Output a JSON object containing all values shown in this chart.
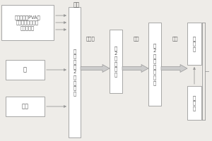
{
  "bg_color": "#eeece8",
  "box_color": "#ffffff",
  "box_edge": "#999999",
  "arrow_color": "#999999",
  "text_color": "#555555",
  "box1_text": "在１中加入PVA纤\n维、橡胶粉、松煤\n灰、乳胶粉",
  "box2_text": "砂",
  "box3_text": "水泥",
  "box4_text": "共\n同\n加\n入\n2\n中\n，\n搅\n拌",
  "label_top": "搅拌",
  "label_dry": "干搅拌",
  "box5_text": "在\n2\n中\n加\n入\n水",
  "label_mix2": "搅拌",
  "box6_text": "在\n2\n中\n加\n入\n减\n水\n剂",
  "label_mix3": "搅拌",
  "box7_text": "拌\n合\n料",
  "box8_text": "进\n速\n示",
  "figw": 3.0,
  "figh": 2.0,
  "dpi": 100
}
